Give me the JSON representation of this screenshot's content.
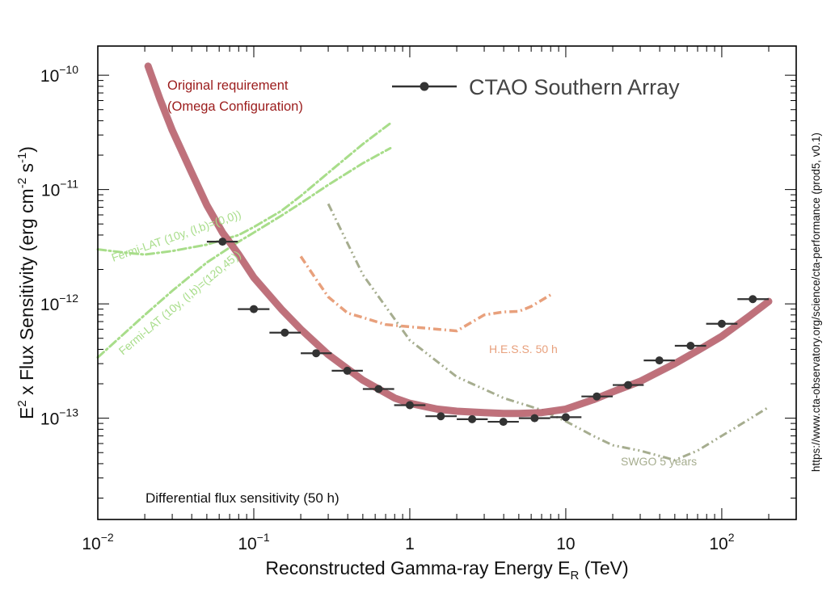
{
  "chart_data": {
    "type": "line",
    "title": "CTAO Southern Array",
    "xlabel": {
      "main": "Reconstructed Gamma-ray Energy E",
      "sub": "R",
      "unit": " (TeV)"
    },
    "ylabel": {
      "a": "E",
      "a_sup": "2",
      "b": " x Flux Sensitivity (erg cm",
      "b_sup": "-2",
      "c": " s",
      "c_sup": "-1",
      "d": ")"
    },
    "x_scale": "log",
    "y_scale": "log",
    "xlim": [
      0.01,
      300
    ],
    "ylim": [
      1.3e-14,
      1.8e-10
    ],
    "x_ticks": [
      {
        "value": 0.01,
        "base": "10",
        "exp": "−2"
      },
      {
        "value": 0.1,
        "base": "10",
        "exp": "−1"
      },
      {
        "value": 1,
        "base": "1",
        "exp": ""
      },
      {
        "value": 10,
        "base": "10",
        "exp": ""
      },
      {
        "value": 100,
        "base": "10",
        "exp": "2"
      }
    ],
    "y_ticks": [
      {
        "value": 1e-13,
        "base": "10",
        "exp": "−13"
      },
      {
        "value": 1e-12,
        "base": "10",
        "exp": "−12"
      },
      {
        "value": 1e-11,
        "base": "10",
        "exp": "−11"
      },
      {
        "value": 1e-10,
        "base": "10",
        "exp": "−10"
      }
    ],
    "legend": {
      "label": "CTAO Southern Array",
      "position": "top-right"
    },
    "annotations": {
      "requirement_line1": "Original requirement",
      "requirement_line2": "(Omega Configuration)",
      "fermi_1": "Fermi-LAT (10y, (l,b)=(0,0))",
      "fermi_2": "Fermi-LAT (10y, (l,b)=(120,45))",
      "hess": "H.E.S.S. 50 h",
      "swgo": "SWGO 5 years",
      "differential": "Differential flux sensitivity (50 h)",
      "url": "https://www.cta-observatory.org/science/cta-performance (prod5, v0.1)"
    },
    "colors": {
      "ctao": "#333333",
      "requirement": "#c0707a",
      "requirement_text": "#9b1c1c",
      "fermi": "#a8dd8a",
      "hess": "#e8a07c",
      "swgo": "#a6ad8f"
    },
    "series": [
      {
        "name": "CTAO Southern Array",
        "kind": "points_with_xerr",
        "points": [
          {
            "x": 0.063,
            "y": 3.5e-12,
            "xlo": 0.05,
            "xhi": 0.079
          },
          {
            "x": 0.1,
            "y": 9e-13,
            "xlo": 0.079,
            "xhi": 0.126
          },
          {
            "x": 0.158,
            "y": 5.6e-13,
            "xlo": 0.126,
            "xhi": 0.2
          },
          {
            "x": 0.251,
            "y": 3.7e-13,
            "xlo": 0.2,
            "xhi": 0.316
          },
          {
            "x": 0.398,
            "y": 2.6e-13,
            "xlo": 0.316,
            "xhi": 0.5
          },
          {
            "x": 0.631,
            "y": 1.8e-13,
            "xlo": 0.5,
            "xhi": 0.794
          },
          {
            "x": 1.0,
            "y": 1.3e-13,
            "xlo": 0.794,
            "xhi": 1.26
          },
          {
            "x": 1.58,
            "y": 1.04e-13,
            "xlo": 1.26,
            "xhi": 2.0
          },
          {
            "x": 2.51,
            "y": 9.8e-14,
            "xlo": 2.0,
            "xhi": 3.16
          },
          {
            "x": 3.98,
            "y": 9.3e-14,
            "xlo": 3.16,
            "xhi": 5.0
          },
          {
            "x": 6.31,
            "y": 1e-13,
            "xlo": 5.0,
            "xhi": 7.94
          },
          {
            "x": 10.0,
            "y": 1.02e-13,
            "xlo": 7.94,
            "xhi": 12.6
          },
          {
            "x": 15.8,
            "y": 1.55e-13,
            "xlo": 12.6,
            "xhi": 20.0
          },
          {
            "x": 25.1,
            "y": 1.95e-13,
            "xlo": 20.0,
            "xhi": 31.6
          },
          {
            "x": 39.8,
            "y": 3.2e-13,
            "xlo": 31.6,
            "xhi": 50.0
          },
          {
            "x": 63.1,
            "y": 4.3e-13,
            "xlo": 50.0,
            "xhi": 79.4
          },
          {
            "x": 100,
            "y": 6.7e-13,
            "xlo": 79.4,
            "xhi": 126
          },
          {
            "x": 158,
            "y": 1.1e-12,
            "xlo": 126,
            "xhi": 200
          }
        ]
      },
      {
        "name": "Original requirement (Omega Configuration)",
        "kind": "curve",
        "x": [
          0.021,
          0.025,
          0.03,
          0.04,
          0.05,
          0.063,
          0.08,
          0.1,
          0.15,
          0.2,
          0.3,
          0.5,
          0.8,
          1,
          1.5,
          2,
          3,
          4,
          5,
          7,
          10,
          15,
          20,
          30,
          50,
          70,
          100,
          150,
          200
        ],
        "y": [
          1.2e-10,
          6.2e-11,
          3.3e-11,
          1.4e-11,
          7.3e-12,
          4.2e-12,
          2.7e-12,
          1.7e-12,
          9e-13,
          6e-13,
          3.6e-13,
          2.15e-13,
          1.5e-13,
          1.35e-13,
          1.2e-13,
          1.15e-13,
          1.12e-13,
          1.1e-13,
          1.1e-13,
          1.12e-13,
          1.2e-13,
          1.45e-13,
          1.7e-13,
          2.1e-13,
          3e-13,
          3.9e-13,
          5.2e-13,
          7.8e-13,
          1.05e-12
        ]
      },
      {
        "name": "Fermi-LAT (10y, (l,b)=(0,0))",
        "kind": "dashdot",
        "x": [
          0.01,
          0.015,
          0.02,
          0.03,
          0.05,
          0.08,
          0.1,
          0.15,
          0.2,
          0.3,
          0.5,
          0.75
        ],
        "y": [
          3e-12,
          2.8e-12,
          2.7e-12,
          2.9e-12,
          3.3e-12,
          4e-12,
          4.7e-12,
          6.5e-12,
          8.8e-12,
          1.4e-11,
          2.5e-11,
          3.8e-11
        ]
      },
      {
        "name": "Fermi-LAT (10y, (l,b)=(120,45))",
        "kind": "dashdot",
        "x": [
          0.01,
          0.02,
          0.03,
          0.05,
          0.08,
          0.1,
          0.15,
          0.2,
          0.3,
          0.5,
          0.75
        ],
        "y": [
          3.4e-13,
          8e-13,
          1.3e-12,
          2.3e-12,
          3.5e-12,
          4.2e-12,
          5.9e-12,
          7.6e-12,
          1.1e-11,
          1.7e-11,
          2.3e-11
        ]
      },
      {
        "name": "H.E.S.S. 50 h",
        "kind": "dashdot",
        "x": [
          0.2,
          0.25,
          0.3,
          0.4,
          0.5,
          0.7,
          1.0,
          1.5,
          2.0,
          3.0,
          4.0,
          5.0,
          6.0,
          8.0
        ],
        "y": [
          2.6e-12,
          1.65e-12,
          1.15e-12,
          8.3e-13,
          7.6e-13,
          6.6e-13,
          6.3e-13,
          6e-13,
          5.8e-13,
          8e-13,
          8.5e-13,
          8.6e-13,
          9.5e-13,
          1.2e-12
        ]
      },
      {
        "name": "SWGO 5 years",
        "kind": "dashdot",
        "x": [
          0.3,
          0.5,
          1,
          2,
          4,
          7,
          10,
          15,
          20,
          30,
          50,
          70,
          100,
          150,
          200
        ],
        "y": [
          7.5e-12,
          1.8e-12,
          4.8e-13,
          2.3e-13,
          1.5e-13,
          1.18e-13,
          9.4e-14,
          7e-14,
          5.8e-14,
          5.2e-14,
          4.3e-14,
          5.2e-14,
          7e-14,
          9.8e-14,
          1.25e-13
        ]
      }
    ]
  }
}
